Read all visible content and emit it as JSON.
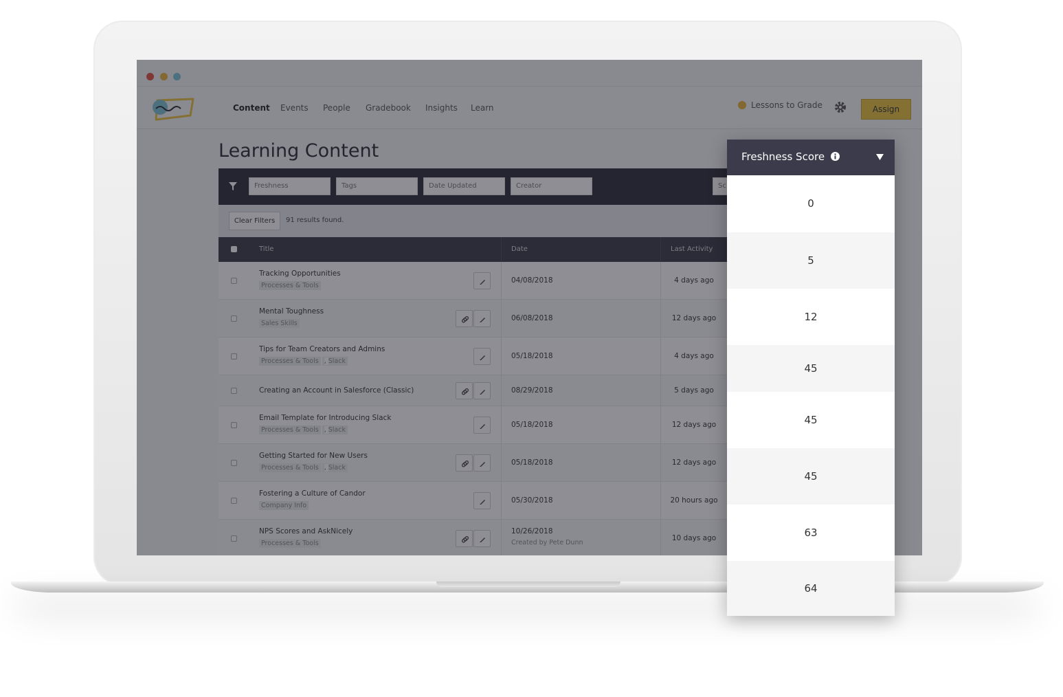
{
  "nav": {
    "items": [
      "Content",
      "Events",
      "People",
      "Gradebook",
      "Insights",
      "Learn"
    ],
    "lessons": "Lessons to Grade",
    "assign": "Assign"
  },
  "page_title": "Learning Content",
  "filters": [
    "Freshness",
    "Tags",
    "Date Updated",
    "Creator"
  ],
  "search": "Sc",
  "clear_filters": "Clear Filters",
  "results": "91 results found.",
  "table": {
    "headers": [
      "Title",
      "Date",
      "Last Activity"
    ],
    "rows": [
      {
        "title": "Tracking Opportunities",
        "tags": [
          "Processes & Tools"
        ],
        "date": "04/08/2018",
        "activity": "4 days ago",
        "link": false
      },
      {
        "title": "Mental Toughness",
        "tags": [
          "Sales Skills"
        ],
        "date": "06/08/2018",
        "activity": "12 days ago",
        "link": true
      },
      {
        "title": "Tips for Team Creators and Admins",
        "tags": [
          "Processes & Tools",
          "Slack"
        ],
        "date": "05/18/2018",
        "activity": "4 days ago",
        "link": false
      },
      {
        "title": "Creating an Account in Salesforce (Classic)",
        "tags": [],
        "date": "08/29/2018",
        "activity": "5 days ago",
        "link": true
      },
      {
        "title": "Email Template for Introducing Slack",
        "tags": [
          "Processes & Tools",
          "Slack"
        ],
        "date": "05/18/2018",
        "activity": "12 days ago",
        "link": false
      },
      {
        "title": "Getting Started for New Users",
        "tags": [
          "Processes & Tools",
          "Slack"
        ],
        "date": "05/18/2018",
        "activity": "12 days ago",
        "link": true
      },
      {
        "title": "Fostering a Culture of Candor",
        "tags": [
          "Company Info"
        ],
        "date": "05/30/2018",
        "activity": "20 hours ago",
        "link": false
      },
      {
        "title": "NPS Scores and AskNicely",
        "tags": [
          "Processes & Tools"
        ],
        "date": "10/26/2018",
        "created_by": "Created by Pete Dunn",
        "activity": "10 days ago",
        "link": true
      }
    ]
  },
  "freshness": {
    "header": "Freshness Score",
    "scores": [
      0,
      5,
      12,
      45,
      45,
      45,
      63,
      64
    ]
  }
}
